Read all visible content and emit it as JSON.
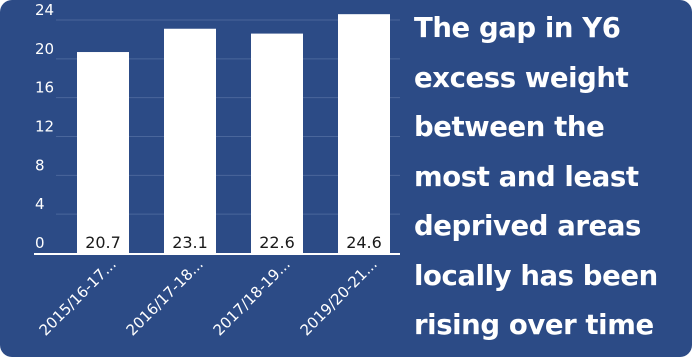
{
  "colors": {
    "background": "#2c4b86",
    "bar": "#ffffff",
    "gridline": "#4a669b",
    "axis": "#ffffff",
    "text": "#ffffff",
    "data_label": "#1a1a1a"
  },
  "headline": "The gap in Y6 excess weight between the most and least deprived areas locally has been rising over time",
  "chart_data": {
    "type": "bar",
    "categories": [
      "2015/16-17...",
      "2016/17-18...",
      "2017/18-19...",
      "2019/20-21..."
    ],
    "values": [
      20.7,
      23.1,
      22.6,
      24.6
    ],
    "data_labels": [
      "20.7",
      "23.1",
      "22.6",
      "24.6"
    ],
    "yticks": [
      0,
      4,
      8,
      12,
      16,
      20,
      24
    ],
    "ylim": [
      0,
      24
    ],
    "grid": true,
    "title": "",
    "xlabel": "",
    "ylabel": ""
  }
}
